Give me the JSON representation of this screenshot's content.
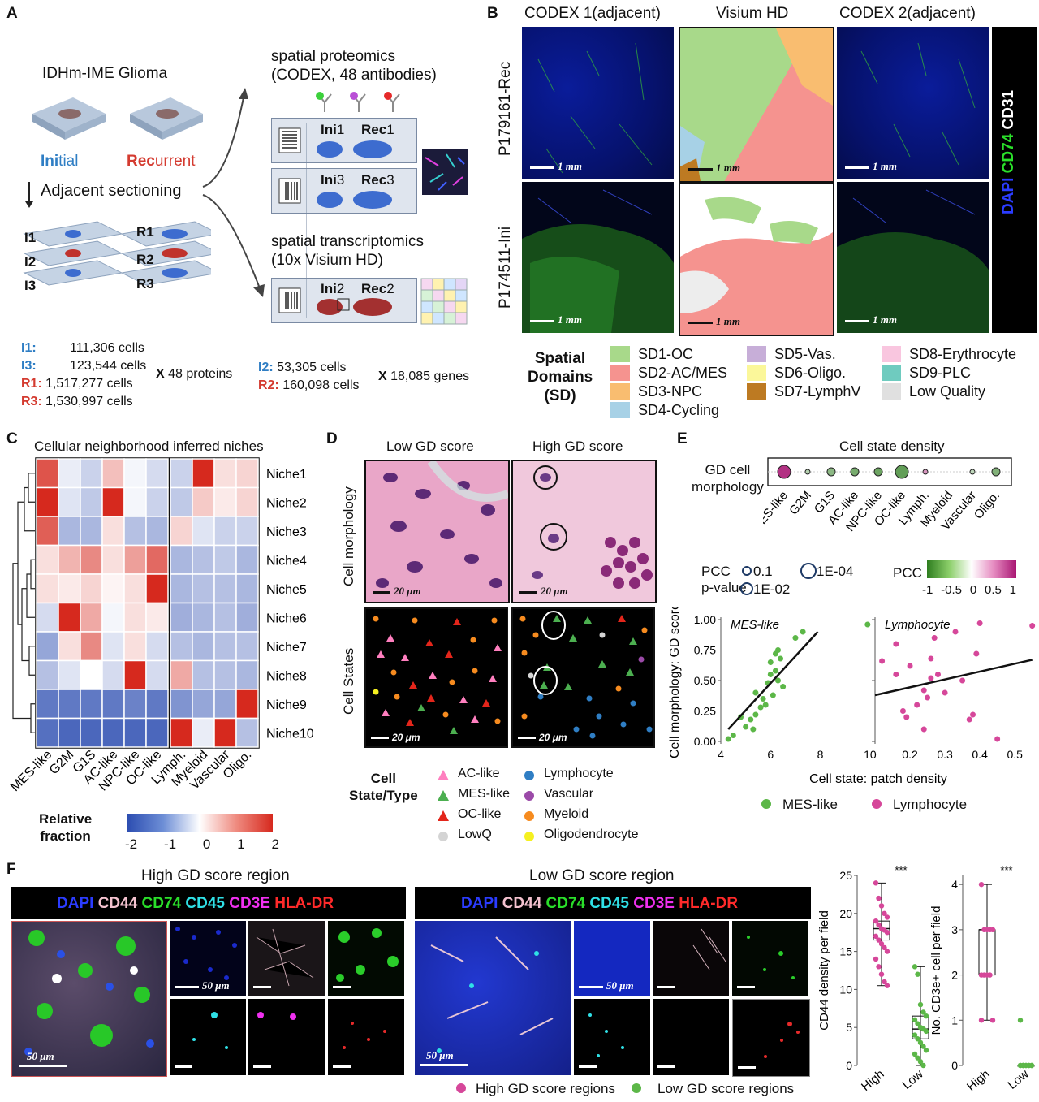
{
  "panel_letters": {
    "a": "A",
    "b": "B",
    "c": "C",
    "d": "D",
    "e": "E",
    "f": "F"
  },
  "panel_a": {
    "title": "IDHm-IME Glioma",
    "initial": {
      "ini": "Ini",
      "tial": "tial"
    },
    "recurrent": {
      "rec": "Rec",
      "urrent": "urrent"
    },
    "adjacent": "Adjacent sectioning",
    "slides_left": [
      "I1",
      "I2",
      "I3"
    ],
    "slides_right": [
      "R1",
      "R2",
      "R3"
    ],
    "proteomics": [
      "spatial proteomics",
      "(CODEX, 48 antibodies)"
    ],
    "transcriptomics": [
      "spatial transcriptomics",
      "(10x Visium HD)"
    ],
    "chip1": [
      [
        "Ini",
        "1"
      ],
      [
        "Rec",
        "1"
      ]
    ],
    "chip2": [
      [
        "Ini",
        "3"
      ],
      [
        "Rec",
        "3"
      ]
    ],
    "chip3": [
      [
        "Ini",
        "2"
      ],
      [
        "Rec",
        "2"
      ]
    ],
    "counts_left": [
      [
        "I1:",
        "111,306 cells"
      ],
      [
        "I3:",
        "123,544 cells"
      ],
      [
        "R1:",
        "1,517,277 cells"
      ],
      [
        "R3:",
        "1,530,997 cells"
      ]
    ],
    "x48": "X",
    "proteins": "48 proteins",
    "counts_right": [
      [
        "I2:",
        "53,305 cells"
      ],
      [
        "R2:",
        "160,098 cells"
      ]
    ],
    "x2": "X",
    "genes": "18,085 genes"
  },
  "panel_b": {
    "col_titles": [
      "CODEX 1(adjacent)",
      "Visium HD",
      "CODEX 2(adjacent)"
    ],
    "row_titles": [
      "P179161-Rec",
      "P174511-Ini"
    ],
    "scale": "1 mm",
    "side_labels": [
      "DAPI",
      "CD74",
      "CD31"
    ],
    "side_colors": [
      "#2b3cff",
      "#2adf2a",
      "#ffffff"
    ],
    "legend_title": [
      "Spatial",
      "Domains",
      "(SD)"
    ],
    "legend": [
      {
        "label": "SD1-OC",
        "color": "#a8d98a"
      },
      {
        "label": "SD2-AC/MES",
        "color": "#f5938f"
      },
      {
        "label": "SD3-NPC",
        "color": "#f9bd70"
      },
      {
        "label": "SD4-Cycling",
        "color": "#a7d1e6"
      },
      {
        "label": "SD5-Vas.",
        "color": "#c7aed8"
      },
      {
        "label": "SD6-Oligo.",
        "color": "#fbf79a"
      },
      {
        "label": "SD7-LymphV",
        "color": "#bd7a22"
      },
      {
        "label": "SD8-Erythrocyte",
        "color": "#f9c6df"
      },
      {
        "label": "SD9-PLC",
        "color": "#6fcbbf"
      },
      {
        "label": "Low Quality",
        "color": "#e0e0e0"
      }
    ]
  },
  "panel_c": {
    "title": "Cellular neighborhood inferred niches",
    "rows": [
      "Niche1",
      "Niche2",
      "Niche3",
      "Niche4",
      "Niche5",
      "Niche6",
      "Niche7",
      "Niche8",
      "Niche9",
      "Niche10"
    ],
    "cols_left": [
      "MES-like",
      "G2M",
      "G1S",
      "AC-like",
      "NPC-like",
      "OC-like"
    ],
    "cols_right": [
      "Lymph.",
      "Myeloid",
      "Vascular",
      "Oligo."
    ],
    "values_left": [
      [
        1.6,
        -0.2,
        -0.5,
        0.6,
        -0.1,
        -0.4
      ],
      [
        2.0,
        -0.3,
        -0.6,
        2.2,
        -0.1,
        -0.5
      ],
      [
        1.5,
        -0.8,
        -0.8,
        0.3,
        -0.7,
        -0.8
      ],
      [
        0.3,
        0.7,
        1.1,
        0.3,
        0.9,
        1.4
      ],
      [
        0.3,
        0.2,
        0.4,
        0.1,
        0.3,
        2.2
      ],
      [
        -0.4,
        2.2,
        0.8,
        -0.1,
        0.3,
        0.2
      ],
      [
        -1.0,
        0.3,
        1.1,
        -0.3,
        0.3,
        -0.4
      ],
      [
        -0.7,
        -0.3,
        0.0,
        -0.4,
        2.2,
        -0.4
      ],
      [
        -1.5,
        -1.5,
        -1.5,
        -1.5,
        -1.4,
        -1.5
      ],
      [
        -1.6,
        -1.7,
        -1.7,
        -1.7,
        -1.7,
        -1.7
      ]
    ],
    "values_right": [
      [
        -0.5,
        2.2,
        0.3,
        0.4
      ],
      [
        -0.6,
        0.5,
        0.2,
        0.4
      ],
      [
        0.4,
        -0.3,
        -0.5,
        -0.5
      ],
      [
        -0.8,
        -0.7,
        -0.6,
        -0.8
      ],
      [
        -0.8,
        -0.7,
        -0.7,
        -0.8
      ],
      [
        -0.9,
        -0.8,
        -0.7,
        -0.9
      ],
      [
        -0.7,
        -0.8,
        -0.7,
        -0.7
      ],
      [
        0.8,
        -0.7,
        -0.7,
        -0.8
      ],
      [
        -1.2,
        -1.0,
        -1.0,
        2.2
      ],
      [
        2.2,
        -0.2,
        2.2,
        -0.7
      ]
    ],
    "colorbar_label": [
      "Relative",
      "fraction"
    ],
    "colorbar_ticks": [
      "-2",
      "-1",
      "0",
      "1",
      "2"
    ]
  },
  "panel_d": {
    "col_titles": [
      "Low GD score",
      "High GD score"
    ],
    "row_titles": [
      "Cell morphology",
      "Cell States"
    ],
    "scale": "20 μm",
    "legend_title": [
      "Cell",
      "State/Type"
    ],
    "legend": [
      {
        "label": "AC-like",
        "shape": "triangle",
        "color": "#ff7fbf"
      },
      {
        "label": "MES-like",
        "shape": "triangle",
        "color": "#4caf50"
      },
      {
        "label": "OC-like",
        "shape": "triangle",
        "color": "#e3261b"
      },
      {
        "label": "LowQ",
        "shape": "circle",
        "color": "#d4d4d4"
      },
      {
        "label": "Lymphocyte",
        "shape": "circle",
        "color": "#2f7ec4"
      },
      {
        "label": "Vascular",
        "shape": "circle",
        "color": "#9b4aa8"
      },
      {
        "label": "Myeloid",
        "shape": "circle",
        "color": "#f68b1f"
      },
      {
        "label": "Oligodendrocyte",
        "shape": "circle",
        "color": "#f5f020"
      }
    ]
  },
  "panel_e": {
    "title": "Cell state density",
    "row_label": [
      "GD cell",
      "morphology"
    ],
    "states": [
      "MES-like",
      "G2M",
      "G1S",
      "AC-like",
      "NPC-like",
      "OC-like",
      "Lymph.",
      "Myeloid",
      "Vascular",
      "Oligo."
    ],
    "pcc": [
      0.88,
      -0.35,
      -0.55,
      -0.65,
      -0.7,
      -0.75,
      0.45,
      0.0,
      -0.3,
      -0.6
    ],
    "dot_size": [
      3,
      1,
      2,
      2,
      2,
      3,
      1,
      0,
      1,
      2
    ],
    "legend_pcc_label": "PCC",
    "legend_pvalue_label": "p-value",
    "legend_sizes": [
      "0.1",
      "1E-04",
      "1E-02"
    ],
    "colorbar_label": "PCC",
    "colorbar_ticks": [
      "-1",
      "-0.5",
      "0",
      "0.5",
      "1"
    ],
    "ylabel": "Cell morphology: GD score",
    "xlabel": "Cell state: patch density",
    "panel1": "MES-like",
    "panel2": "Lymphocyte",
    "legend": [
      {
        "label": "MES-like",
        "color": "#5cb748"
      },
      {
        "label": "Lymphocyte",
        "color": "#d6479a"
      }
    ]
  },
  "chart_data": [
    {
      "type": "scatter",
      "title": "MES-like",
      "xlabel": "Cell state: patch density",
      "ylabel": "Cell morphology: GD score",
      "xlim": [
        4,
        10.2
      ],
      "ylim": [
        -0.02,
        1.02
      ],
      "xticks": [
        "4",
        "6",
        "8",
        "10"
      ],
      "yticks": [
        "0.00",
        "0.25",
        "0.50",
        "0.75",
        "1.00"
      ],
      "color": "#5cb748",
      "points": [
        [
          4.3,
          0.02
        ],
        [
          4.5,
          0.05
        ],
        [
          4.8,
          0.2
        ],
        [
          5.0,
          0.12
        ],
        [
          5.2,
          0.18
        ],
        [
          5.3,
          0.1
        ],
        [
          5.4,
          0.22
        ],
        [
          5.4,
          0.4
        ],
        [
          5.6,
          0.28
        ],
        [
          5.7,
          0.35
        ],
        [
          5.8,
          0.3
        ],
        [
          5.9,
          0.48
        ],
        [
          6.0,
          0.55
        ],
        [
          6.0,
          0.65
        ],
        [
          6.1,
          0.38
        ],
        [
          6.2,
          0.58
        ],
        [
          6.2,
          0.72
        ],
        [
          6.3,
          0.75
        ],
        [
          6.3,
          0.5
        ],
        [
          6.4,
          0.68
        ],
        [
          6.5,
          0.45
        ],
        [
          7.0,
          0.85
        ],
        [
          7.3,
          0.9
        ],
        [
          9.9,
          0.96
        ]
      ],
      "fit": [
        [
          4.3,
          0.1
        ],
        [
          7.9,
          0.9
        ]
      ]
    },
    {
      "type": "scatter",
      "title": "Lymphocyte",
      "xlim": [
        0.1,
        0.56
      ],
      "ylim": [
        -0.02,
        1.02
      ],
      "xticks": [
        "0.2",
        "0.3",
        "0.4",
        "0.5"
      ],
      "color": "#d6479a",
      "points": [
        [
          0.12,
          0.66
        ],
        [
          0.16,
          0.8
        ],
        [
          0.16,
          0.55
        ],
        [
          0.18,
          0.25
        ],
        [
          0.19,
          0.2
        ],
        [
          0.2,
          0.62
        ],
        [
          0.22,
          0.3
        ],
        [
          0.24,
          0.42
        ],
        [
          0.24,
          0.1
        ],
        [
          0.25,
          0.36
        ],
        [
          0.26,
          0.52
        ],
        [
          0.26,
          0.68
        ],
        [
          0.27,
          0.85
        ],
        [
          0.28,
          0.55
        ],
        [
          0.3,
          0.4
        ],
        [
          0.33,
          0.9
        ],
        [
          0.35,
          0.5
        ],
        [
          0.37,
          0.18
        ],
        [
          0.38,
          0.22
        ],
        [
          0.39,
          0.72
        ],
        [
          0.4,
          0.97
        ],
        [
          0.45,
          0.02
        ],
        [
          0.55,
          0.95
        ]
      ],
      "fit": [
        [
          0.1,
          0.38
        ],
        [
          0.55,
          0.67
        ]
      ]
    },
    {
      "type": "box",
      "ylabel": "CD44 density per field",
      "categories": [
        "High",
        "Low"
      ],
      "ylim": [
        0,
        25
      ],
      "yticks": [
        "0",
        "5",
        "10",
        "15",
        "20",
        "25"
      ],
      "significance": "***",
      "series": [
        {
          "name": "High GD score regions",
          "color": "#d6479a",
          "box": [
            15,
            16.5,
            18,
            19,
            21
          ],
          "whisker": [
            10.5,
            24
          ],
          "points": [
            24,
            22,
            21,
            20,
            19.5,
            19,
            18.5,
            18,
            17.8,
            17.5,
            17,
            16.5,
            16,
            15.5,
            15,
            14,
            13,
            12,
            11,
            10.5
          ]
        },
        {
          "name": "Low GD score regions",
          "color": "#5cb748",
          "box": [
            2,
            3.5,
            4.8,
            6.5,
            7
          ],
          "whisker": [
            0,
            13
          ],
          "points": [
            13,
            12,
            8,
            7,
            6.5,
            6,
            5.5,
            5,
            4.8,
            4.5,
            4,
            3.5,
            3,
            2.5,
            2,
            1.5,
            1,
            0.5,
            0
          ]
        }
      ]
    },
    {
      "type": "box",
      "ylabel": "No. CD3e+ cell per field",
      "categories": [
        "High",
        "Low"
      ],
      "ylim": [
        0,
        4.2
      ],
      "yticks": [
        "0",
        "1",
        "2",
        "3",
        "4"
      ],
      "significance": "***",
      "series": [
        {
          "name": "High GD score regions",
          "color": "#d6479a",
          "box": [
            2,
            2,
            3,
            3,
            3
          ],
          "whisker": [
            1,
            4
          ],
          "points": [
            4,
            3,
            3,
            3,
            3,
            2,
            2,
            2,
            2,
            1,
            1
          ]
        },
        {
          "name": "Low GD score regions",
          "color": "#5cb748",
          "box": [
            0,
            0,
            0,
            0,
            0
          ],
          "whisker": [
            0,
            0
          ],
          "points": [
            1,
            0,
            0,
            0,
            0,
            0,
            0,
            0,
            0,
            0,
            0,
            0
          ]
        }
      ]
    }
  ],
  "panel_f": {
    "title_high": "High GD score region",
    "title_low": "Low GD score region",
    "markers": [
      {
        "label": "DAPI",
        "color": "#2b3cff"
      },
      {
        "label": "CD44",
        "color": "#f4c2cf"
      },
      {
        "label": "CD74",
        "color": "#2adf2a"
      },
      {
        "label": "CD45",
        "color": "#2fe0e6"
      },
      {
        "label": "CD3E",
        "color": "#f030f0"
      },
      {
        "label": "HLA-DR",
        "color": "#ff2a2a"
      }
    ],
    "scale": "50 μm",
    "legend": [
      {
        "label": "High GD score regions",
        "color": "#d6479a"
      },
      {
        "label": "Low GD score regions",
        "color": "#5cb748"
      }
    ]
  }
}
